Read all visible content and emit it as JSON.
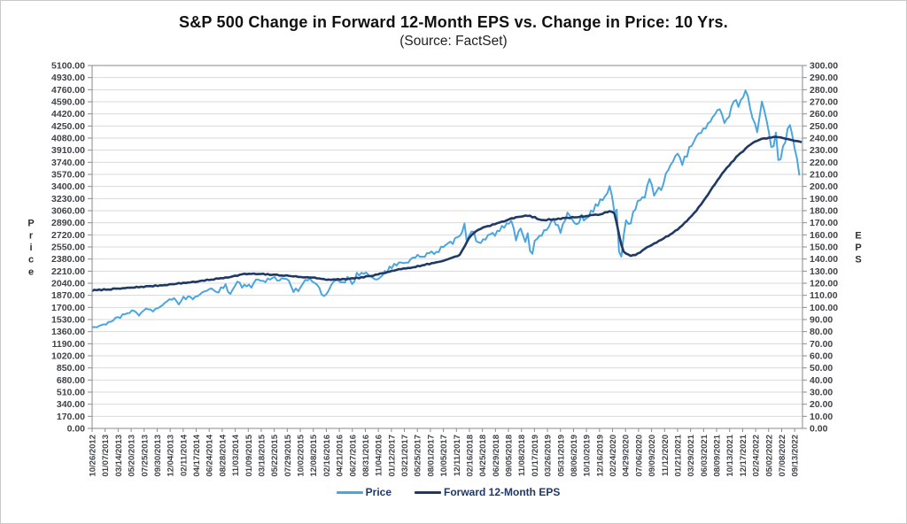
{
  "chart_data": {
    "type": "line",
    "title": "S&P 500 Change in Forward 12-Month EPS vs. Change in Price: 10 Yrs.",
    "subtitle": "(Source: FactSet)",
    "grid": "horizontal",
    "legend_position": "bottom",
    "left_axis": {
      "label": "Price",
      "min": 0,
      "max": 5100,
      "step": 170
    },
    "right_axis": {
      "label": "EPS",
      "min": 0,
      "max": 300,
      "step": 10
    },
    "x_labels": [
      "10/26/2012",
      "01/07/2013",
      "03/14/2013",
      "05/20/2013",
      "07/25/2013",
      "09/30/2013",
      "12/04/2013",
      "02/11/2014",
      "04/17/2014",
      "06/24/2014",
      "08/28/2014",
      "11/03/2014",
      "01/09/2015",
      "03/18/2015",
      "05/22/2015",
      "07/29/2015",
      "10/02/2015",
      "12/08/2015",
      "02/16/2016",
      "04/21/2016",
      "06/27/2016",
      "08/31/2016",
      "11/04/2016",
      "01/12/2017",
      "03/21/2017",
      "05/25/2017",
      "08/01/2017",
      "10/05/2017",
      "12/11/2017",
      "02/16/2018",
      "04/25/2018",
      "06/29/2018",
      "09/05/2018",
      "11/08/2018",
      "01/17/2019",
      "03/26/2019",
      "05/31/2019",
      "08/06/2019",
      "10/10/2019",
      "12/16/2019",
      "02/24/2020",
      "04/29/2020",
      "07/06/2020",
      "09/09/2020",
      "11/12/2020",
      "01/21/2021",
      "03/29/2021",
      "06/03/2021",
      "08/09/2021",
      "10/13/2021",
      "12/17/2021",
      "02/24/2022",
      "05/02/2022",
      "07/08/2022",
      "09/13/2022"
    ],
    "series": [
      {
        "name": "Price",
        "axis": "left",
        "color": "#4ba6df",
        "points": [
          [
            0,
            1412
          ],
          [
            0.5,
            1428
          ],
          [
            1,
            1462
          ],
          [
            1.5,
            1515
          ],
          [
            2,
            1563
          ],
          [
            2.5,
            1597
          ],
          [
            3,
            1666
          ],
          [
            3.3,
            1655
          ],
          [
            3.5,
            1573
          ],
          [
            4,
            1690
          ],
          [
            4.35,
            1685
          ],
          [
            4.6,
            1630
          ],
          [
            5,
            1682
          ],
          [
            5.5,
            1760
          ],
          [
            6,
            1793
          ],
          [
            6.3,
            1842
          ],
          [
            6.7,
            1742
          ],
          [
            7,
            1820
          ],
          [
            7.5,
            1873
          ],
          [
            7.8,
            1815
          ],
          [
            8,
            1865
          ],
          [
            8.5,
            1900
          ],
          [
            9,
            1950
          ],
          [
            9.3,
            1985
          ],
          [
            9.6,
            1909
          ],
          [
            10,
            1997
          ],
          [
            10.3,
            2010
          ],
          [
            10.6,
            1862
          ],
          [
            11,
            2018
          ],
          [
            11.3,
            2075
          ],
          [
            11.6,
            1973
          ],
          [
            12,
            2045
          ],
          [
            12.3,
            1992
          ],
          [
            12.6,
            2110
          ],
          [
            13,
            2099
          ],
          [
            13.3,
            2061
          ],
          [
            13.6,
            2117
          ],
          [
            14,
            2126
          ],
          [
            14.3,
            2077
          ],
          [
            14.6,
            2124
          ],
          [
            15,
            2109
          ],
          [
            15.2,
            2068
          ],
          [
            15.4,
            1868
          ],
          [
            15.6,
            1988
          ],
          [
            15.8,
            1913
          ],
          [
            16,
            1951
          ],
          [
            16.3,
            2078
          ],
          [
            16.6,
            2102
          ],
          [
            17,
            2064
          ],
          [
            17.4,
            1990
          ],
          [
            17.7,
            1859
          ],
          [
            17.9,
            1829
          ],
          [
            18,
            1895
          ],
          [
            18.5,
            2050
          ],
          [
            19,
            2091
          ],
          [
            19.3,
            2048
          ],
          [
            19.6,
            2099
          ],
          [
            19.8,
            2113
          ],
          [
            20,
            2001
          ],
          [
            20.3,
            2166
          ],
          [
            21,
            2171
          ],
          [
            21.5,
            2139
          ],
          [
            22,
            2085
          ],
          [
            22.3,
            2164
          ],
          [
            22.6,
            2205
          ],
          [
            23,
            2270
          ],
          [
            23.5,
            2294
          ],
          [
            24,
            2344
          ],
          [
            24.3,
            2328
          ],
          [
            24.6,
            2388
          ],
          [
            25,
            2415
          ],
          [
            25.5,
            2430
          ],
          [
            26,
            2476
          ],
          [
            26.3,
            2438
          ],
          [
            26.6,
            2500
          ],
          [
            27,
            2552
          ],
          [
            27.5,
            2599
          ],
          [
            28,
            2660
          ],
          [
            28.4,
            2743
          ],
          [
            28.65,
            2873
          ],
          [
            28.85,
            2581
          ],
          [
            29,
            2732
          ],
          [
            29.3,
            2787
          ],
          [
            29.6,
            2588
          ],
          [
            30,
            2639
          ],
          [
            30.5,
            2728
          ],
          [
            31,
            2718
          ],
          [
            31.5,
            2816
          ],
          [
            32,
            2888
          ],
          [
            32.25,
            2931
          ],
          [
            32.6,
            2641
          ],
          [
            32.8,
            2781
          ],
          [
            33,
            2806
          ],
          [
            33.3,
            2633
          ],
          [
            33.5,
            2790
          ],
          [
            33.75,
            2351
          ],
          [
            34,
            2636
          ],
          [
            34.5,
            2707
          ],
          [
            35,
            2818
          ],
          [
            35.5,
            2946
          ],
          [
            36,
            2752
          ],
          [
            36.3,
            2890
          ],
          [
            36.6,
            3026
          ],
          [
            37,
            2882
          ],
          [
            37.3,
            2847
          ],
          [
            37.6,
            2979
          ],
          [
            38,
            2938
          ],
          [
            38.5,
            3067
          ],
          [
            39,
            3191
          ],
          [
            39.5,
            3258
          ],
          [
            39.8,
            3386
          ],
          [
            40,
            3226
          ],
          [
            40.2,
            2954
          ],
          [
            40.35,
            3090
          ],
          [
            40.55,
            2237
          ],
          [
            40.8,
            2627
          ],
          [
            41,
            2940
          ],
          [
            41.3,
            2848
          ],
          [
            41.6,
            3055
          ],
          [
            42,
            3180
          ],
          [
            42.5,
            3271
          ],
          [
            42.9,
            3580
          ],
          [
            43,
            3399
          ],
          [
            43.3,
            3237
          ],
          [
            43.6,
            3443
          ],
          [
            43.8,
            3270
          ],
          [
            44,
            3537
          ],
          [
            44.5,
            3695
          ],
          [
            45,
            3853
          ],
          [
            45.3,
            3714
          ],
          [
            45.6,
            3811
          ],
          [
            46,
            3971
          ],
          [
            46.5,
            4128
          ],
          [
            47,
            4193
          ],
          [
            47.5,
            4297
          ],
          [
            48,
            4432
          ],
          [
            48.3,
            4480
          ],
          [
            48.6,
            4307
          ],
          [
            49,
            4364
          ],
          [
            49.4,
            4697
          ],
          [
            49.7,
            4513
          ],
          [
            50,
            4621
          ],
          [
            50.3,
            4797
          ],
          [
            50.6,
            4483
          ],
          [
            50.8,
            4326
          ],
          [
            51,
            4289
          ],
          [
            51.15,
            4171
          ],
          [
            51.5,
            4631
          ],
          [
            52,
            4155
          ],
          [
            52.3,
            3901
          ],
          [
            52.55,
            4158
          ],
          [
            52.8,
            3667
          ],
          [
            53,
            3899
          ],
          [
            53.4,
            4130
          ],
          [
            53.65,
            4305
          ],
          [
            54,
            3933
          ],
          [
            54.15,
            3790
          ],
          [
            54.35,
            3585
          ],
          [
            54.45,
            3640
          ]
        ]
      },
      {
        "name": "Forward 12-Month EPS",
        "axis": "right",
        "color": "#1f3864",
        "points": [
          [
            0,
            114
          ],
          [
            1,
            114.8
          ],
          [
            2,
            115.5
          ],
          [
            3,
            116.3
          ],
          [
            4,
            117.2
          ],
          [
            5,
            118
          ],
          [
            6,
            119
          ],
          [
            7,
            120.2
          ],
          [
            8,
            121.3
          ],
          [
            9,
            122.8
          ],
          [
            10,
            124.3
          ],
          [
            11,
            126
          ],
          [
            11.5,
            127.3
          ],
          [
            12,
            127.8
          ],
          [
            13,
            127.5
          ],
          [
            14,
            127
          ],
          [
            15,
            126.2
          ],
          [
            16,
            125.2
          ],
          [
            17,
            124.6
          ],
          [
            18,
            123.2
          ],
          [
            18.5,
            122.8
          ],
          [
            19,
            123.2
          ],
          [
            20,
            123.8
          ],
          [
            21,
            125.2
          ],
          [
            22,
            127.2
          ],
          [
            23,
            130
          ],
          [
            24,
            132.2
          ],
          [
            25,
            134
          ],
          [
            26,
            136.2
          ],
          [
            27,
            138.6
          ],
          [
            27.6,
            141
          ],
          [
            28,
            142
          ],
          [
            28.3,
            144
          ],
          [
            28.7,
            152
          ],
          [
            29,
            158
          ],
          [
            29.5,
            163
          ],
          [
            30,
            166
          ],
          [
            31,
            169
          ],
          [
            32,
            172.5
          ],
          [
            32.5,
            174.5
          ],
          [
            33,
            175.3
          ],
          [
            33.5,
            175.8
          ],
          [
            34,
            174.5
          ],
          [
            34.5,
            172
          ],
          [
            35,
            172.5
          ],
          [
            36,
            173.5
          ],
          [
            37,
            174.5
          ],
          [
            38,
            175.5
          ],
          [
            39,
            177
          ],
          [
            39.5,
            178.5
          ],
          [
            39.9,
            179.5
          ],
          [
            40.2,
            177
          ],
          [
            40.5,
            160
          ],
          [
            40.8,
            147
          ],
          [
            41,
            144.5
          ],
          [
            41.4,
            142.8
          ],
          [
            41.8,
            143.2
          ],
          [
            42,
            145
          ],
          [
            42.5,
            148.5
          ],
          [
            43,
            151.5
          ],
          [
            43.5,
            154.5
          ],
          [
            44,
            157.5
          ],
          [
            44.5,
            160.5
          ],
          [
            45,
            164.5
          ],
          [
            45.5,
            169.5
          ],
          [
            46,
            174.5
          ],
          [
            46.5,
            181
          ],
          [
            47,
            188
          ],
          [
            47.5,
            196
          ],
          [
            48,
            204
          ],
          [
            48.5,
            212
          ],
          [
            49,
            218
          ],
          [
            49.5,
            224
          ],
          [
            50,
            229
          ],
          [
            50.5,
            234
          ],
          [
            51,
            237.5
          ],
          [
            51.5,
            239.5
          ],
          [
            52,
            240.3
          ],
          [
            52.5,
            241
          ],
          [
            53,
            240.5
          ],
          [
            53.5,
            239
          ],
          [
            54,
            238
          ],
          [
            54.3,
            237.2
          ],
          [
            54.6,
            236
          ]
        ]
      }
    ],
    "colors": {
      "grid": "#d9d9d9",
      "plot_border": "#8a8a8a",
      "tick_text": "#3e4247",
      "legend_text": "#1f3864"
    }
  }
}
